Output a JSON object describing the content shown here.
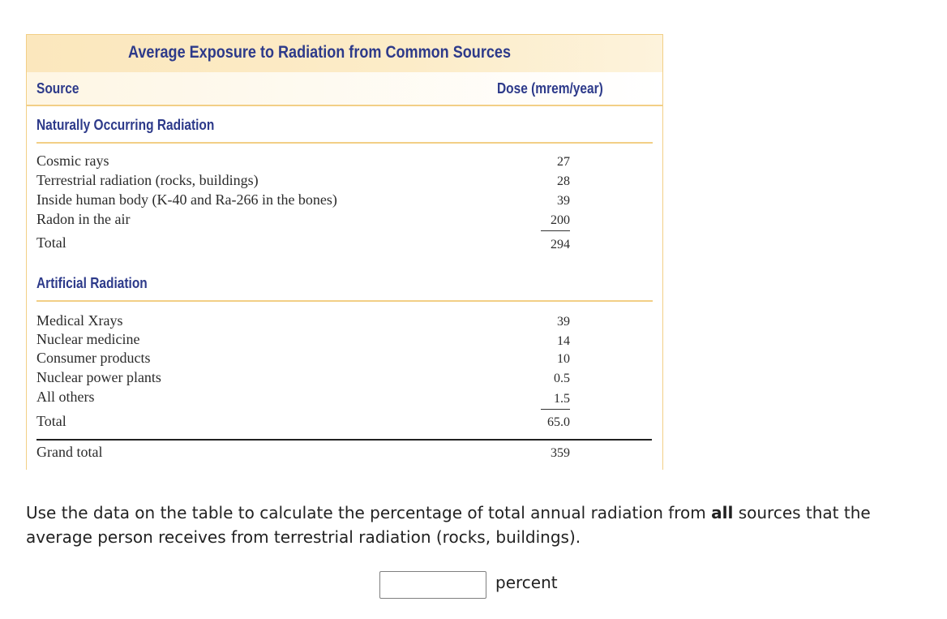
{
  "table": {
    "title": "Average Exposure to Radiation from Common Sources",
    "col_source": "Source",
    "col_dose": "Dose (mrem/year)",
    "natural": {
      "heading": "Naturally Occurring Radiation",
      "rows": [
        {
          "label": "Cosmic rays",
          "value": "27"
        },
        {
          "label": "Terrestrial radiation (rocks, buildings)",
          "value": "28"
        },
        {
          "label": "Inside human body (K-40 and Ra-266 in the bones)",
          "value": "39"
        },
        {
          "label": "Radon in the air",
          "value": "200"
        }
      ],
      "total_label": "Total",
      "total_value": "294"
    },
    "artificial": {
      "heading": "Artificial Radiation",
      "rows": [
        {
          "label": "Medical Xrays",
          "value": "39"
        },
        {
          "label": "Nuclear medicine",
          "value": "14"
        },
        {
          "label": "Consumer products",
          "value": "10"
        },
        {
          "label": "Nuclear power plants",
          "value": "0.5"
        },
        {
          "label": "All others",
          "value": "1.5"
        }
      ],
      "total_label": "Total",
      "total_value": "65.0"
    },
    "grand_total_label": "Grand total",
    "grand_total_value": "359"
  },
  "question": {
    "part1": "Use the data on the table to calculate the percentage of total annual radiation from ",
    "emphasis": "all",
    "part2": " sources that the average person receives from terrestrial radiation (rocks, buildings)."
  },
  "answer": {
    "value": "",
    "unit": "percent"
  }
}
